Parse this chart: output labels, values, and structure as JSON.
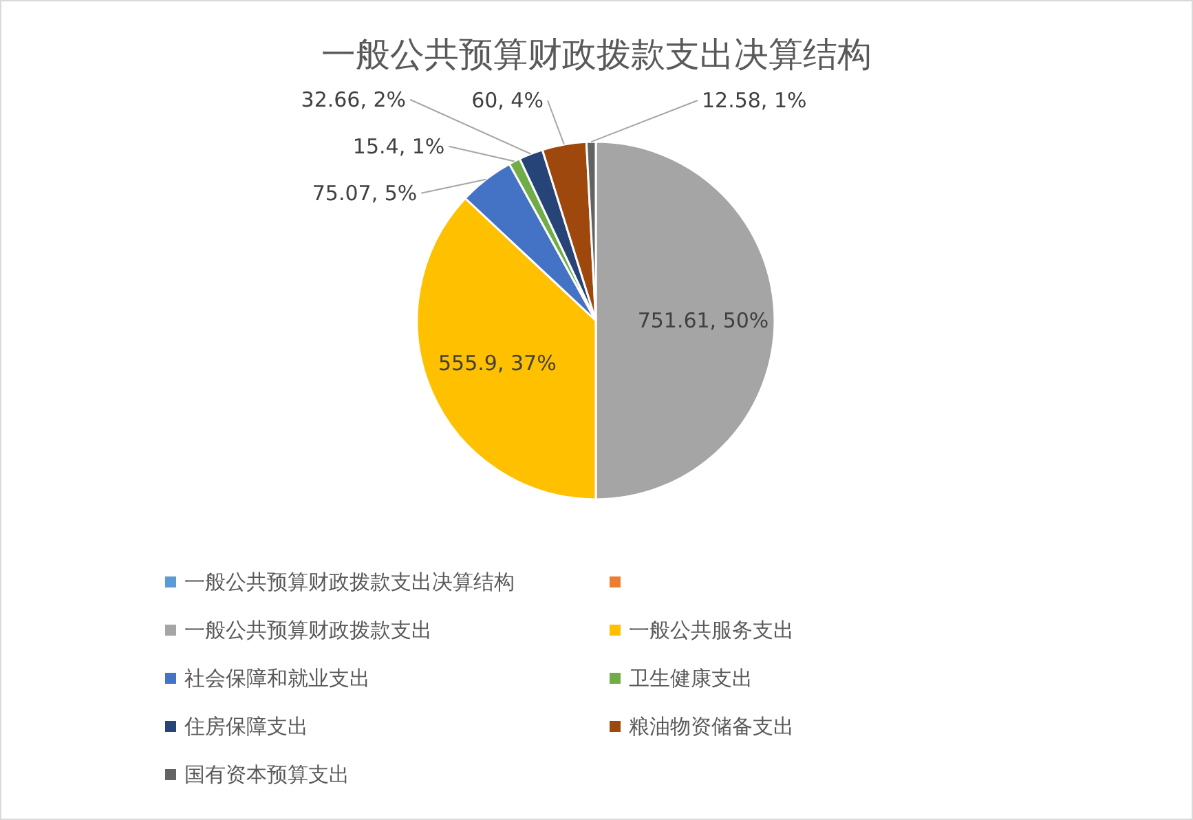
{
  "chart_data": {
    "type": "pie",
    "title": "一般公共预算财政拨款支出决算结构",
    "categories": [
      "一般公共预算财政拨款支出决算结构",
      null,
      "一般公共预算财政拨款支出",
      "一般公共服务支出",
      "社会保障和就业支出",
      "卫生健康支出",
      "住房保障支出",
      "粮油物资储备支出",
      "国有资本预算支出"
    ],
    "values": [
      null,
      null,
      751.61,
      555.9,
      75.07,
      15.4,
      32.66,
      60,
      12.58
    ],
    "value_labels": [
      null,
      null,
      "751.61, 50%",
      "555.9, 37%",
      "75.07, 5%",
      "15.4, 1%",
      "32.66, 2%",
      "60, 4%",
      "12.58, 1%"
    ],
    "colors": [
      "#5b9bd5",
      "#ed7d31",
      "#a5a5a5",
      "#ffc000",
      "#4472c4",
      "#70ad47",
      "#264478",
      "#9e480e",
      "#636363"
    ],
    "legend": "bottom"
  }
}
